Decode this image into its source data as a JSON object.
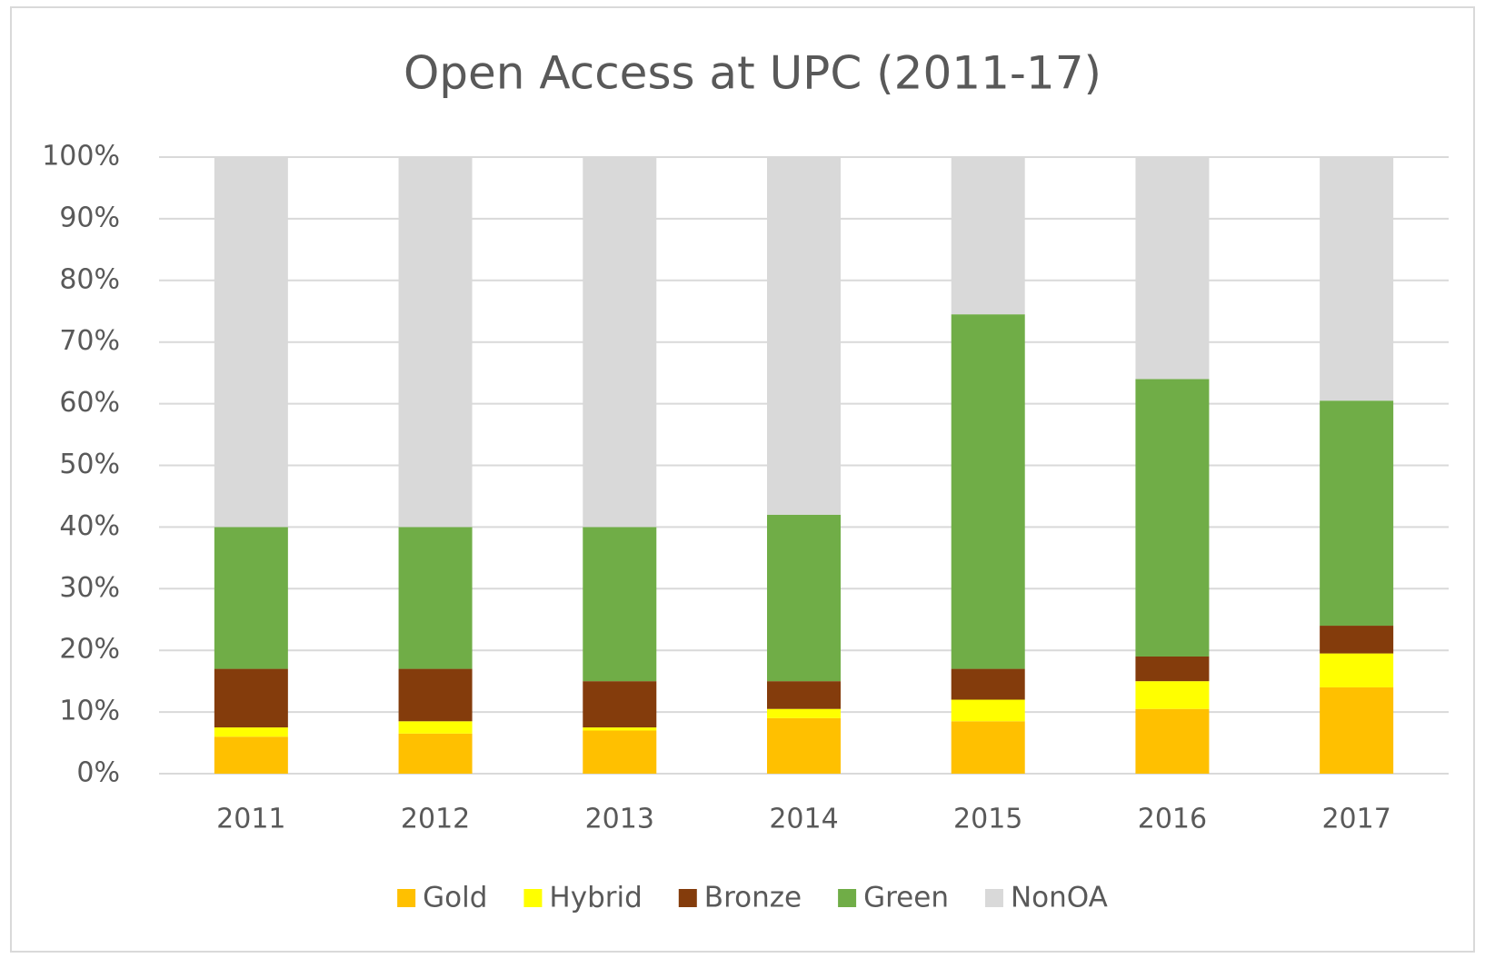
{
  "chart_data": {
    "type": "stacked_bar",
    "title": "Open Access at UPC (2011-17)",
    "categories": [
      "2011",
      "2012",
      "2013",
      "2014",
      "2015",
      "2016",
      "2017"
    ],
    "series": [
      {
        "name": "Gold",
        "color": "#ffc000",
        "values": [
          6,
          6.5,
          7,
          9,
          8.5,
          10.5,
          14
        ]
      },
      {
        "name": "Hybrid",
        "color": "#ffff00",
        "values": [
          1.5,
          2,
          0.5,
          1.5,
          3.5,
          4.5,
          5.5
        ]
      },
      {
        "name": "Bronze",
        "color": "#843c0c",
        "values": [
          9.5,
          8.5,
          7.5,
          4.5,
          5,
          4,
          4.5
        ]
      },
      {
        "name": "Green",
        "color": "#70ad47",
        "values": [
          23,
          23,
          25,
          27,
          57.5,
          45,
          36.5
        ]
      },
      {
        "name": "NonOA",
        "color": "#d9d9d9",
        "values": [
          60,
          60,
          60,
          58,
          25.5,
          36,
          39.5
        ]
      }
    ],
    "ylim": [
      0,
      100
    ],
    "yticks": [
      {
        "value": 0,
        "label": "0%"
      },
      {
        "value": 10,
        "label": "10%"
      },
      {
        "value": 20,
        "label": "20%"
      },
      {
        "value": 30,
        "label": "30%"
      },
      {
        "value": 40,
        "label": "40%"
      },
      {
        "value": 50,
        "label": "50%"
      },
      {
        "value": 60,
        "label": "60%"
      },
      {
        "value": 70,
        "label": "70%"
      },
      {
        "value": 80,
        "label": "80%"
      },
      {
        "value": 90,
        "label": "90%"
      },
      {
        "value": 100,
        "label": "100%"
      }
    ],
    "grid": true,
    "legend": "bottom"
  }
}
